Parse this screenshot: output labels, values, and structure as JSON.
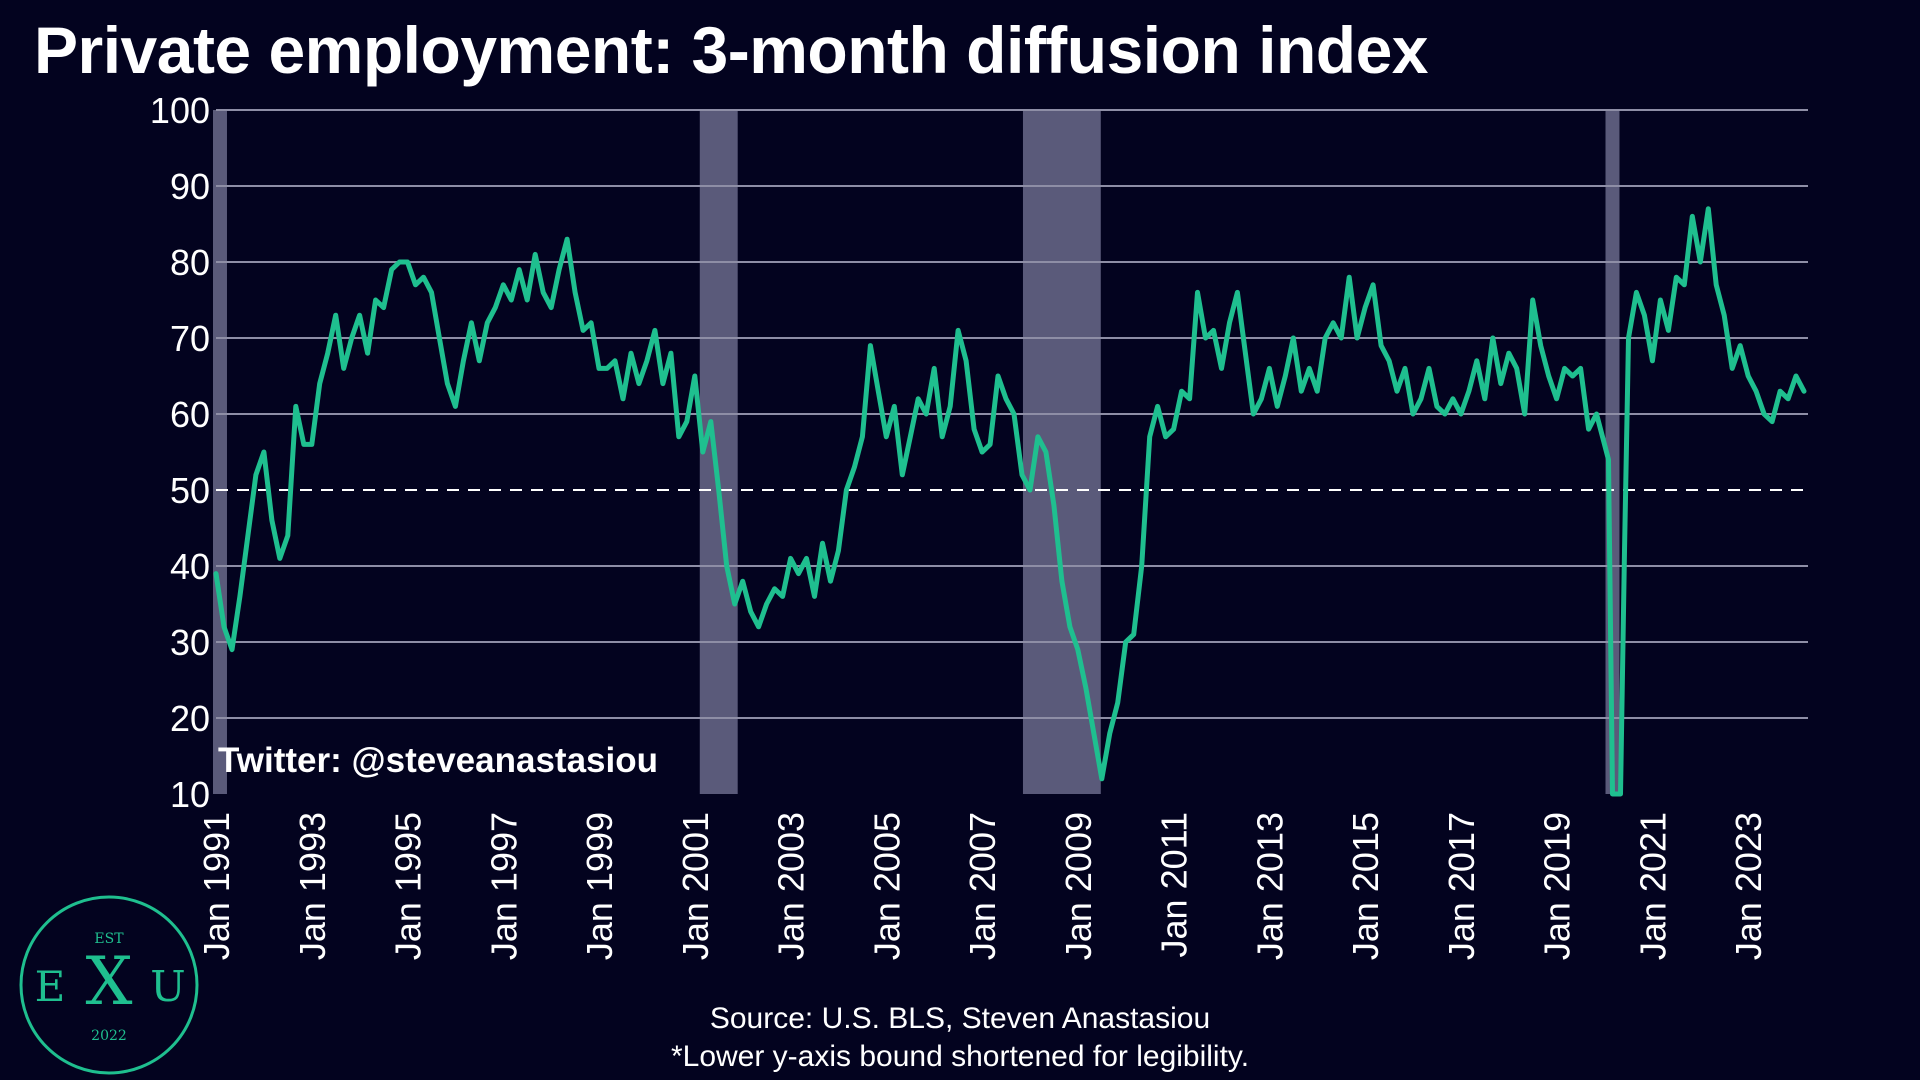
{
  "title": "Private employment: 3-month diffusion index",
  "watermark": "Twitter: @steveanastasiou",
  "source_line1": "Source: U.S. BLS, Steven Anastasiou",
  "source_line2": "*Lower y-axis bound shortened for legibility.",
  "logo": {
    "est": "EST",
    "left": "E",
    "mid": "X",
    "right": "U",
    "year": "2022"
  },
  "colors": {
    "background": "#03031f",
    "line": "#1fbf8f",
    "recession": "#5a5a7a",
    "grid": "#8e8ea6",
    "reference": "#ffffff",
    "logo": "#1fbf8f"
  },
  "chart_data": {
    "type": "line",
    "title": "Private employment: 3-month diffusion index",
    "xlabel": "",
    "ylabel": "",
    "ylim": [
      10,
      100
    ],
    "xlim": [
      "1991-01",
      "2024-04"
    ],
    "grid": true,
    "yticks": [
      10,
      20,
      30,
      40,
      50,
      60,
      70,
      80,
      90,
      100
    ],
    "xtick_labels": [
      "Jan 1991",
      "Jan 1993",
      "Jan 1995",
      "Jan 1997",
      "Jan 1999",
      "Jan 2001",
      "Jan 2003",
      "Jan 2005",
      "Jan 2007",
      "Jan 2009",
      "Jan 2011",
      "Jan 2013",
      "Jan 2015",
      "Jan 2017",
      "Jan 2019",
      "Jan 2021",
      "Jan 2023"
    ],
    "reference_line": 50,
    "recessions": [
      {
        "start": "1991-01",
        "end": "1991-03"
      },
      {
        "start": "2001-03",
        "end": "2001-11"
      },
      {
        "start": "2007-12",
        "end": "2009-06"
      },
      {
        "start": "2020-02",
        "end": "2020-04"
      }
    ],
    "series": [
      {
        "points": [
          [
            "1991-01",
            39
          ],
          [
            "1991-03",
            32
          ],
          [
            "1991-05",
            29
          ],
          [
            "1991-07",
            36
          ],
          [
            "1991-09",
            44
          ],
          [
            "1991-11",
            52
          ],
          [
            "1992-01",
            55
          ],
          [
            "1992-03",
            46
          ],
          [
            "1992-05",
            41
          ],
          [
            "1992-07",
            44
          ],
          [
            "1992-09",
            61
          ],
          [
            "1992-11",
            56
          ],
          [
            "1993-01",
            56
          ],
          [
            "1993-03",
            64
          ],
          [
            "1993-05",
            68
          ],
          [
            "1993-07",
            73
          ],
          [
            "1993-09",
            66
          ],
          [
            "1993-11",
            70
          ],
          [
            "1994-01",
            73
          ],
          [
            "1994-03",
            68
          ],
          [
            "1994-05",
            75
          ],
          [
            "1994-07",
            74
          ],
          [
            "1994-09",
            79
          ],
          [
            "1994-11",
            80
          ],
          [
            "1995-01",
            80
          ],
          [
            "1995-03",
            77
          ],
          [
            "1995-05",
            78
          ],
          [
            "1995-07",
            76
          ],
          [
            "1995-09",
            70
          ],
          [
            "1995-11",
            64
          ],
          [
            "1996-01",
            61
          ],
          [
            "1996-03",
            67
          ],
          [
            "1996-05",
            72
          ],
          [
            "1996-07",
            67
          ],
          [
            "1996-09",
            72
          ],
          [
            "1996-11",
            74
          ],
          [
            "1997-01",
            77
          ],
          [
            "1997-03",
            75
          ],
          [
            "1997-05",
            79
          ],
          [
            "1997-07",
            75
          ],
          [
            "1997-09",
            81
          ],
          [
            "1997-11",
            76
          ],
          [
            "1998-01",
            74
          ],
          [
            "1998-03",
            79
          ],
          [
            "1998-05",
            83
          ],
          [
            "1998-07",
            76
          ],
          [
            "1998-09",
            71
          ],
          [
            "1998-11",
            72
          ],
          [
            "1999-01",
            66
          ],
          [
            "1999-03",
            66
          ],
          [
            "1999-05",
            67
          ],
          [
            "1999-07",
            62
          ],
          [
            "1999-09",
            68
          ],
          [
            "1999-11",
            64
          ],
          [
            "2000-01",
            67
          ],
          [
            "2000-03",
            71
          ],
          [
            "2000-05",
            64
          ],
          [
            "2000-07",
            68
          ],
          [
            "2000-09",
            57
          ],
          [
            "2000-11",
            59
          ],
          [
            "2001-01",
            65
          ],
          [
            "2001-03",
            55
          ],
          [
            "2001-05",
            59
          ],
          [
            "2001-07",
            50
          ],
          [
            "2001-09",
            40
          ],
          [
            "2001-11",
            35
          ],
          [
            "2002-01",
            38
          ],
          [
            "2002-03",
            34
          ],
          [
            "2002-05",
            32
          ],
          [
            "2002-07",
            35
          ],
          [
            "2002-09",
            37
          ],
          [
            "2002-11",
            36
          ],
          [
            "2003-01",
            41
          ],
          [
            "2003-03",
            39
          ],
          [
            "2003-05",
            41
          ],
          [
            "2003-07",
            36
          ],
          [
            "2003-09",
            43
          ],
          [
            "2003-11",
            38
          ],
          [
            "2004-01",
            42
          ],
          [
            "2004-03",
            50
          ],
          [
            "2004-05",
            53
          ],
          [
            "2004-07",
            57
          ],
          [
            "2004-09",
            69
          ],
          [
            "2004-11",
            63
          ],
          [
            "2005-01",
            57
          ],
          [
            "2005-03",
            61
          ],
          [
            "2005-05",
            52
          ],
          [
            "2005-07",
            57
          ],
          [
            "2005-09",
            62
          ],
          [
            "2005-11",
            60
          ],
          [
            "2006-01",
            66
          ],
          [
            "2006-03",
            57
          ],
          [
            "2006-05",
            61
          ],
          [
            "2006-07",
            71
          ],
          [
            "2006-09",
            67
          ],
          [
            "2006-11",
            58
          ],
          [
            "2007-01",
            55
          ],
          [
            "2007-03",
            56
          ],
          [
            "2007-05",
            65
          ],
          [
            "2007-07",
            62
          ],
          [
            "2007-09",
            60
          ],
          [
            "2007-11",
            52
          ],
          [
            "2008-01",
            50
          ],
          [
            "2008-03",
            57
          ],
          [
            "2008-05",
            55
          ],
          [
            "2008-07",
            48
          ],
          [
            "2008-09",
            38
          ],
          [
            "2008-11",
            32
          ],
          [
            "2009-01",
            29
          ],
          [
            "2009-03",
            24
          ],
          [
            "2009-05",
            18
          ],
          [
            "2009-07",
            12
          ],
          [
            "2009-09",
            18
          ],
          [
            "2009-11",
            22
          ],
          [
            "2010-01",
            30
          ],
          [
            "2010-03",
            31
          ],
          [
            "2010-05",
            40
          ],
          [
            "2010-07",
            57
          ],
          [
            "2010-09",
            61
          ],
          [
            "2010-11",
            57
          ],
          [
            "2011-01",
            58
          ],
          [
            "2011-03",
            63
          ],
          [
            "2011-05",
            62
          ],
          [
            "2011-07",
            76
          ],
          [
            "2011-09",
            70
          ],
          [
            "2011-11",
            71
          ],
          [
            "2012-01",
            66
          ],
          [
            "2012-03",
            72
          ],
          [
            "2012-05",
            76
          ],
          [
            "2012-07",
            68
          ],
          [
            "2012-09",
            60
          ],
          [
            "2012-11",
            62
          ],
          [
            "2013-01",
            66
          ],
          [
            "2013-03",
            61
          ],
          [
            "2013-05",
            65
          ],
          [
            "2013-07",
            70
          ],
          [
            "2013-09",
            63
          ],
          [
            "2013-11",
            66
          ],
          [
            "2014-01",
            63
          ],
          [
            "2014-03",
            70
          ],
          [
            "2014-05",
            72
          ],
          [
            "2014-07",
            70
          ],
          [
            "2014-09",
            78
          ],
          [
            "2014-11",
            70
          ],
          [
            "2015-01",
            74
          ],
          [
            "2015-03",
            77
          ],
          [
            "2015-05",
            69
          ],
          [
            "2015-07",
            67
          ],
          [
            "2015-09",
            63
          ],
          [
            "2015-11",
            66
          ],
          [
            "2016-01",
            60
          ],
          [
            "2016-03",
            62
          ],
          [
            "2016-05",
            66
          ],
          [
            "2016-07",
            61
          ],
          [
            "2016-09",
            60
          ],
          [
            "2016-11",
            62
          ],
          [
            "2017-01",
            60
          ],
          [
            "2017-03",
            63
          ],
          [
            "2017-05",
            67
          ],
          [
            "2017-07",
            62
          ],
          [
            "2017-09",
            70
          ],
          [
            "2017-11",
            64
          ],
          [
            "2018-01",
            68
          ],
          [
            "2018-03",
            66
          ],
          [
            "2018-05",
            60
          ],
          [
            "2018-07",
            75
          ],
          [
            "2018-09",
            69
          ],
          [
            "2018-11",
            65
          ],
          [
            "2019-01",
            62
          ],
          [
            "2019-03",
            66
          ],
          [
            "2019-05",
            65
          ],
          [
            "2019-07",
            66
          ],
          [
            "2019-09",
            58
          ],
          [
            "2019-11",
            60
          ],
          [
            "2020-01",
            56
          ],
          [
            "2020-02",
            54
          ],
          [
            "2020-03",
            10
          ],
          [
            "2020-05",
            10
          ],
          [
            "2020-06",
            42
          ],
          [
            "2020-07",
            70
          ],
          [
            "2020-09",
            76
          ],
          [
            "2020-11",
            73
          ],
          [
            "2021-01",
            67
          ],
          [
            "2021-03",
            75
          ],
          [
            "2021-05",
            71
          ],
          [
            "2021-07",
            78
          ],
          [
            "2021-09",
            77
          ],
          [
            "2021-11",
            86
          ],
          [
            "2022-01",
            80
          ],
          [
            "2022-03",
            87
          ],
          [
            "2022-05",
            77
          ],
          [
            "2022-07",
            73
          ],
          [
            "2022-09",
            66
          ],
          [
            "2022-11",
            69
          ],
          [
            "2023-01",
            65
          ],
          [
            "2023-03",
            63
          ],
          [
            "2023-05",
            60
          ],
          [
            "2023-07",
            59
          ],
          [
            "2023-09",
            63
          ],
          [
            "2023-11",
            62
          ],
          [
            "2024-01",
            65
          ],
          [
            "2024-03",
            63
          ]
        ]
      }
    ]
  }
}
